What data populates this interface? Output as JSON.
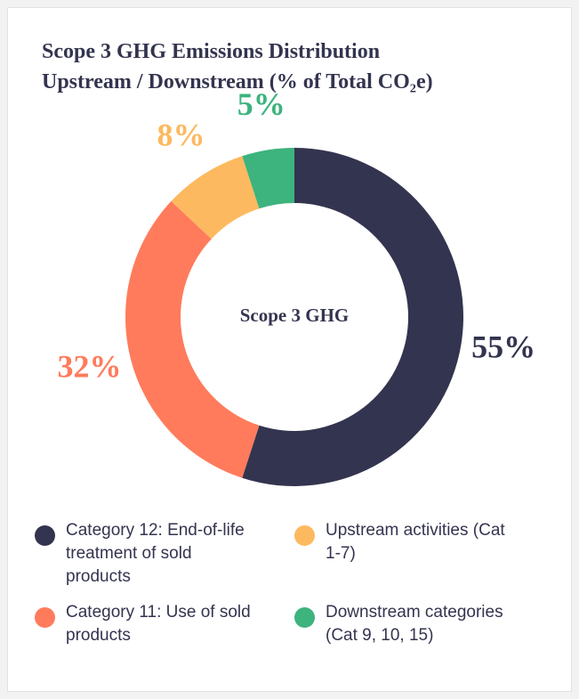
{
  "chart_data": {
    "type": "donut",
    "title": [
      "Scope 3 GHG Emissions Distribution",
      "Upstream / Downstream (% of Total CO₂e)"
    ],
    "center_label": "Scope 3 GHG",
    "categories": [
      "Category 12: End-of-life treatment of sold products",
      "Category 11: Use of sold products",
      "Upstream activities (Cat 1-7)",
      "Downstream categories (Cat 9, 10, 15)"
    ],
    "values": [
      55,
      32,
      8,
      5
    ],
    "value_labels": [
      "55%",
      "32%",
      "8%",
      "5%"
    ],
    "colors": [
      "#33344f",
      "#ff7b5c",
      "#fdb95f",
      "#3db37e"
    ]
  }
}
